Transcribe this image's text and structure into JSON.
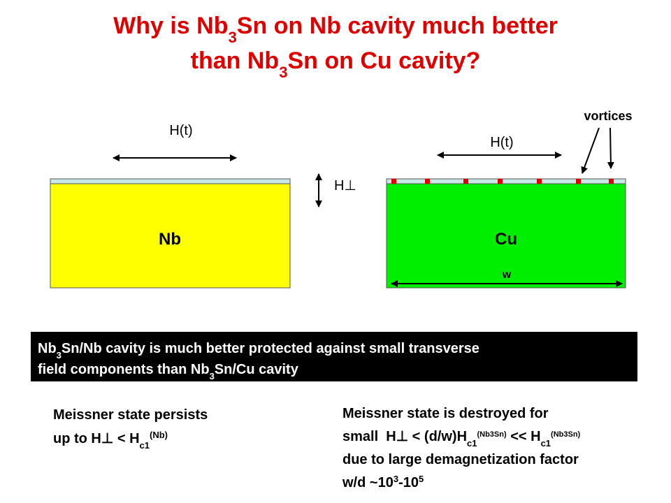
{
  "title": {
    "line1": [
      "Why is Nb",
      "3",
      "Sn on Nb cavity much better"
    ],
    "line2": [
      "than Nb",
      "3",
      "Sn on Cu cavity?"
    ]
  },
  "diagram": {
    "left_field": "H(t)",
    "right_field": "H(t)",
    "perpendicular_field": "H⊥",
    "vortices": "vortices",
    "left_block": "Nb",
    "right_block": "Cu",
    "width": "w"
  },
  "callout": {
    "line1": [
      "Nb",
      "3",
      "Sn/Nb cavity is much better protected against small transverse"
    ],
    "line2": [
      "field components than Nb",
      "3",
      "Sn/Cu cavity"
    ]
  },
  "left_note": {
    "line1": "Meissner state persists",
    "line2": [
      "up to H",
      "⊥",
      " < H",
      "c1",
      "(Nb)"
    ]
  },
  "right_note": {
    "line1": "Meissner state is destroyed for",
    "line2": [
      "small  H",
      "⊥",
      " < (d/w)H",
      "c1",
      "(Nb3Sn)",
      " << H",
      "c1",
      "(Nb3Sn)"
    ],
    "line3": "due to large demagnetization factor",
    "line4": [
      "w/d ",
      "~",
      "10",
      "3",
      "-10",
      "5"
    ]
  }
}
